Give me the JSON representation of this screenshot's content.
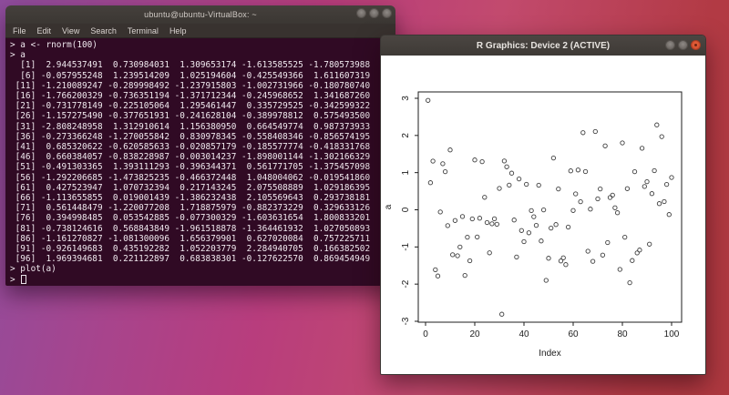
{
  "terminal": {
    "title": "ubuntu@ubuntu-VirtualBox: ~",
    "menu": [
      "File",
      "Edit",
      "View",
      "Search",
      "Terminal",
      "Help"
    ],
    "lines": [
      "> a <- rnorm(100)",
      "> a",
      "  [1]  2.944537491  0.730984031  1.309653174 -1.613585525 -1.780573988",
      "  [6] -0.057955248  1.239514209  1.025194604 -0.425549366  1.611607319",
      " [11] -1.210089247 -0.289998492 -1.237915803 -1.002731966 -0.180780740",
      " [16] -1.766200329 -0.736351194 -1.371712344 -0.245968652  1.341687260",
      " [21] -0.731778149 -0.225105064  1.295461447  0.335729525 -0.342599322",
      " [26] -1.157275490 -0.377651931 -0.241628104 -0.389978812  0.575493500",
      " [31] -2.808248958  1.312910614  1.156380950  0.664549774  0.987373933",
      " [36] -0.273366248 -1.270055842  0.830978345 -0.558408346 -0.856574195",
      " [41]  0.685320622 -0.620585633 -0.020857179 -0.185577774 -0.418331768",
      " [46]  0.660384057 -0.838228987 -0.003014237 -1.898001144 -1.302166329",
      " [51] -0.491303365  1.393111293 -0.396344371  0.561771705 -1.375457098",
      " [56] -1.292206685 -1.473825235 -0.466372448  1.048004062 -0.019541860",
      " [61]  0.427523947  1.070732394  0.217143245  2.075508889  1.029186395",
      " [66] -1.113655855  0.019001439 -1.386232438  2.105569643  0.293738181",
      " [71]  0.561448479 -1.220077208  1.718875979 -0.882373229  0.329633126",
      " [76]  0.394998485  0.053542885 -0.077300329 -1.603631654  1.800833201",
      " [81] -0.738124616  0.568843849 -1.961518878 -1.364461932  1.027050893",
      " [86] -1.161270827 -1.081300096  1.656379901  0.627020084  0.757225711",
      " [91] -0.926149683  0.435192282  1.052203779  2.284940705  0.166382502",
      " [96]  1.969394681  0.221122897  0.683838301 -0.127622570  0.869454949",
      "> plot(a)"
    ],
    "prompt": "> "
  },
  "graphics": {
    "title": "R Graphics: Device 2 (ACTIVE)",
    "chart_data": {
      "type": "scatter",
      "title": "",
      "xlabel": "Index",
      "ylabel": "a",
      "x_ticks": [
        0,
        20,
        40,
        60,
        80,
        100
      ],
      "y_ticks": [
        -3,
        -2,
        -1,
        0,
        1,
        2,
        3
      ],
      "xlim": [
        -3,
        104
      ],
      "ylim": [
        -3.05,
        3.18
      ],
      "marker": "open-circle",
      "x_is_index_1_to_n": true,
      "values": [
        2.944537491,
        0.730984031,
        1.309653174,
        -1.613585525,
        -1.780573988,
        -0.057955248,
        1.239514209,
        1.025194604,
        -0.425549366,
        1.611607319,
        -1.210089247,
        -0.289998492,
        -1.237915803,
        -1.002731966,
        -0.18078074,
        -1.766200329,
        -0.736351194,
        -1.371712344,
        -0.245968652,
        1.34168726,
        -0.731778149,
        -0.225105064,
        1.295461447,
        0.335729525,
        -0.342599322,
        -1.15727549,
        -0.377651931,
        -0.241628104,
        -0.389978812,
        0.5754935,
        -2.808248958,
        1.312910614,
        1.15638095,
        0.664549774,
        0.987373933,
        -0.273366248,
        -1.270055842,
        0.830978345,
        -0.558408346,
        -0.856574195,
        0.685320622,
        -0.620585633,
        -0.020857179,
        -0.185577774,
        -0.418331768,
        0.660384057,
        -0.838228987,
        -0.003014237,
        -1.898001144,
        -1.302166329,
        -0.491303365,
        1.393111293,
        -0.396344371,
        0.561771705,
        -1.375457098,
        -1.292206685,
        -1.473825235,
        -0.466372448,
        1.048004062,
        -0.01954186,
        0.427523947,
        1.070732394,
        0.217143245,
        2.075508889,
        1.029186395,
        -1.113655855,
        0.019001439,
        -1.386232438,
        2.105569643,
        0.293738181,
        0.561448479,
        -1.220077208,
        1.718875979,
        -0.882373229,
        0.329633126,
        0.394998485,
        0.053542885,
        -0.077300329,
        -1.603631654,
        1.800833201,
        -0.738124616,
        0.568843849,
        -1.961518878,
        -1.364461932,
        1.027050893,
        -1.161270827,
        -1.081300096,
        1.656379901,
        0.627020084,
        0.757225711,
        -0.926149683,
        0.435192282,
        1.052203779,
        2.284940705,
        0.166382502,
        1.969394681,
        0.221122897,
        0.683838301,
        -0.12762257,
        0.869454949
      ]
    },
    "colors": {
      "point_stroke": "#3f3f3f",
      "axis": "#1c1c1c",
      "close_button": "#d45537"
    }
  }
}
